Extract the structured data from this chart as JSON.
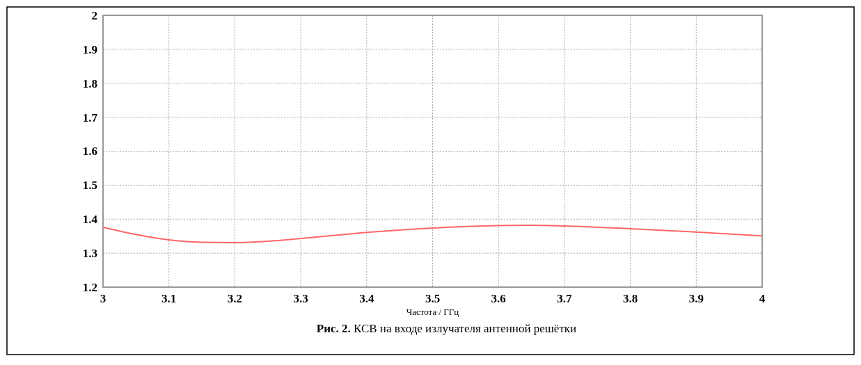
{
  "chart_data": {
    "type": "line",
    "title": "Рис. 2. КСВ на входе излучателя антенной решётки",
    "xlabel": "Частота / ГГц",
    "x": [
      3.0,
      3.05,
      3.1,
      3.15,
      3.2,
      3.25,
      3.3,
      3.4,
      3.5,
      3.6,
      3.65,
      3.7,
      3.8,
      3.9,
      4.0
    ],
    "series": [
      {
        "color": "#ff6666",
        "values": [
          1.376,
          1.355,
          1.339,
          1.332,
          1.331,
          1.335,
          1.343,
          1.361,
          1.374,
          1.381,
          1.382,
          1.38,
          1.372,
          1.362,
          1.351
        ]
      }
    ],
    "xlim": [
      3,
      4
    ],
    "xticks": [
      3,
      3.1,
      3.2,
      3.3,
      3.4,
      3.5,
      3.6,
      3.7,
      3.8,
      3.9,
      4
    ],
    "ylim": [
      1.2,
      2
    ],
    "yticks": [
      1.2,
      1.3,
      1.4,
      1.5,
      1.6,
      1.7,
      1.8,
      1.9,
      2
    ],
    "grid": true,
    "marker": "none",
    "line_style": "solid"
  }
}
